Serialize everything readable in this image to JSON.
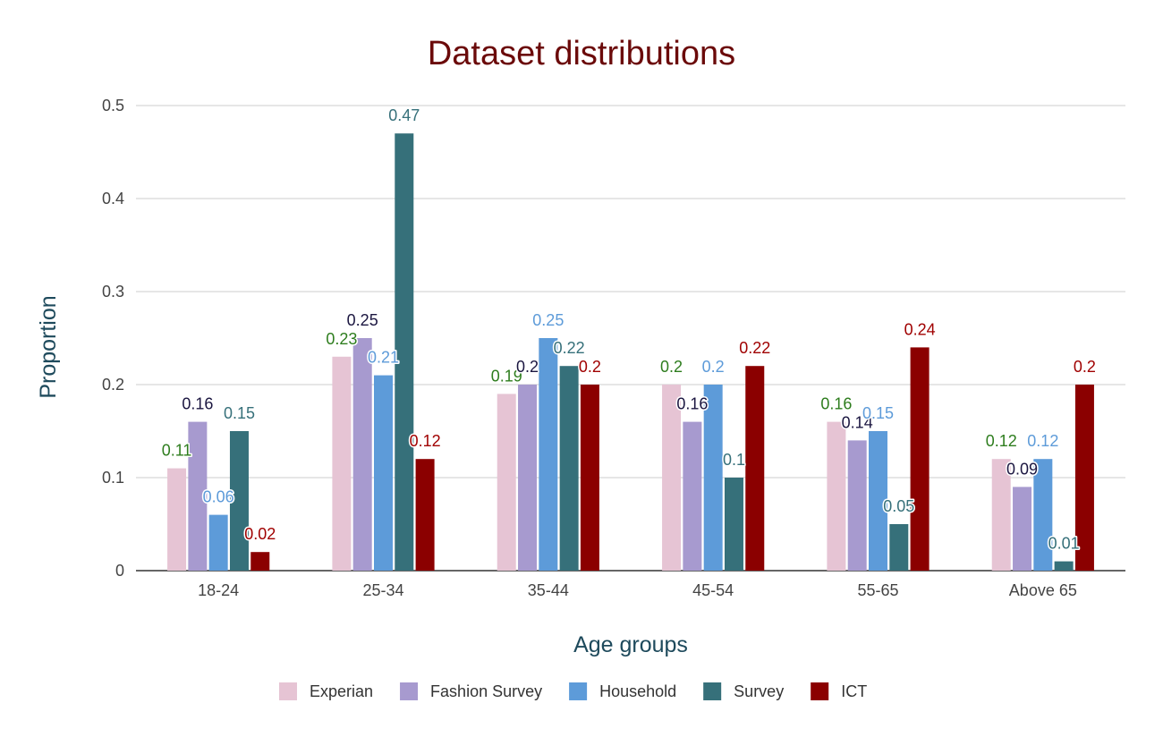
{
  "chart_data": {
    "type": "bar",
    "title": "Dataset distributions",
    "xlabel": "Age groups",
    "ylabel": "Proportion",
    "ylim": [
      0,
      0.5
    ],
    "yticks": [
      "0",
      "0.1",
      "0.2",
      "0.3",
      "0.4",
      "0.5"
    ],
    "grid": true,
    "legend_position": "bottom",
    "categories": [
      "18-24",
      "25-34",
      "35-44",
      "45-54",
      "55-65",
      "Above 65"
    ],
    "series": [
      {
        "name": "Experian",
        "color": "#e6c4d4",
        "label_color": "#2e7d1e",
        "values": [
          0.11,
          0.23,
          0.19,
          0.2,
          0.16,
          0.12
        ],
        "labels": [
          "0.11",
          "0.23",
          "0.19",
          "0.2",
          "0.16",
          "0.12"
        ]
      },
      {
        "name": "Fashion Survey",
        "color": "#a79acf",
        "label_color": "#1b1640",
        "values": [
          0.16,
          0.25,
          0.2,
          0.16,
          0.14,
          0.09
        ],
        "labels": [
          "0.16",
          "0.25",
          "0.2",
          "0.16",
          "0.14",
          "0.09"
        ]
      },
      {
        "name": "Household",
        "color": "#5d9bd9",
        "label_color": "#5d9bd9",
        "values": [
          0.06,
          0.21,
          0.25,
          0.2,
          0.15,
          0.12
        ],
        "labels": [
          "0.06",
          "0.21",
          "0.25",
          "0.2",
          "0.15",
          "0.12"
        ]
      },
      {
        "name": "Survey",
        "color": "#36707a",
        "label_color": "#36707a",
        "values": [
          0.15,
          0.47,
          0.22,
          0.1,
          0.05,
          0.01
        ],
        "labels": [
          "0.15",
          "0.47",
          "0.22",
          "0.1",
          "0.05",
          "0.01"
        ]
      },
      {
        "name": "ICT",
        "color": "#8b0000",
        "label_color": "#a00000",
        "values": [
          0.02,
          0.12,
          0.2,
          0.22,
          0.24,
          0.2
        ],
        "labels": [
          "0.02",
          "0.12",
          "0.2",
          "0.22",
          "0.24",
          "0.2"
        ]
      }
    ]
  }
}
